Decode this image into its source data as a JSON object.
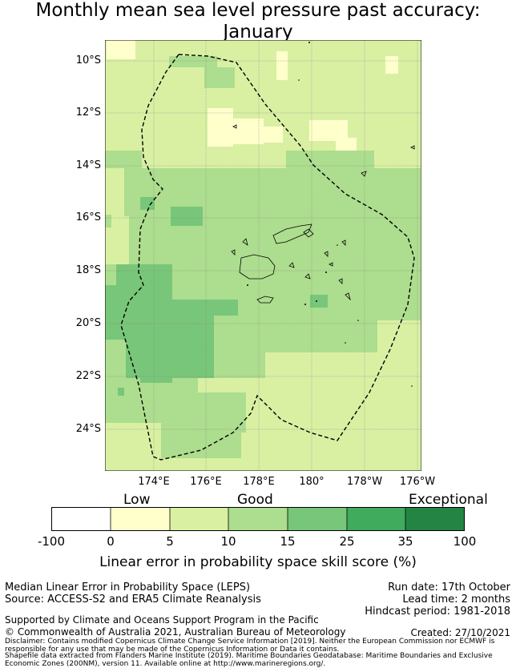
{
  "title": {
    "line1": "Monthly mean sea level pressure past accuracy:",
    "line2": "January"
  },
  "map": {
    "lat_ticks": [
      "10°S",
      "12°S",
      "14°S",
      "16°S",
      "18°S",
      "20°S",
      "22°S",
      "24°S"
    ],
    "lon_ticks": [
      "174°E",
      "176°E",
      "178°E",
      "180°",
      "178°W",
      "176°W"
    ],
    "colors": {
      "very_low": "#ffffcc",
      "low": "#d9f0a3",
      "good_a": "#addd8e",
      "good_b": "#78c679",
      "high": "#41ab5d",
      "exceptional": "#238443",
      "coast": "#000000",
      "eez_boundary": "#000000"
    }
  },
  "colorbar": {
    "category_labels": [
      "Low",
      "Good",
      "Exceptional"
    ],
    "tick_labels": [
      "-100",
      "0",
      "5",
      "10",
      "15",
      "25",
      "35",
      "100"
    ],
    "segment_colors": [
      "#ffffff",
      "#ffffcc",
      "#d9f0a3",
      "#addd8e",
      "#78c679",
      "#41ab5d",
      "#238443"
    ],
    "title": "Linear error in probability space skill score (%)"
  },
  "footer": {
    "left1": "Median Linear Error in Probability Space (LEPS)",
    "left2": "Source: ACCESS-S2 and ERA5 Climate Reanalysis",
    "right1": "Run date: 17th October",
    "right2": "Lead time: 2 months",
    "right3": "Hindcast period: 1981-2018",
    "support": "Supported by Climate and Oceans Support Program in the Pacific",
    "copyright": "© Commonwealth of Australia 2021, Australian Bureau of Meteorology",
    "created": "Created: 27/10/2021",
    "disclaimer": "Disclaimer: Contains modified Copernicus Climate Change Service Information [2019]. Neither the European Commission nor ECMWF is responsible for any use that may be made of the Copernicus Information or Data it contains.",
    "shapefile": "Shapefile data extracted from Flanders Marine Institute (2019). Maritime Boundaries Geodatabase: Maritime Boundaries and Exclusive Economic Zones (200NM), version 11. Available online at http://www.marineregions.org/."
  }
}
